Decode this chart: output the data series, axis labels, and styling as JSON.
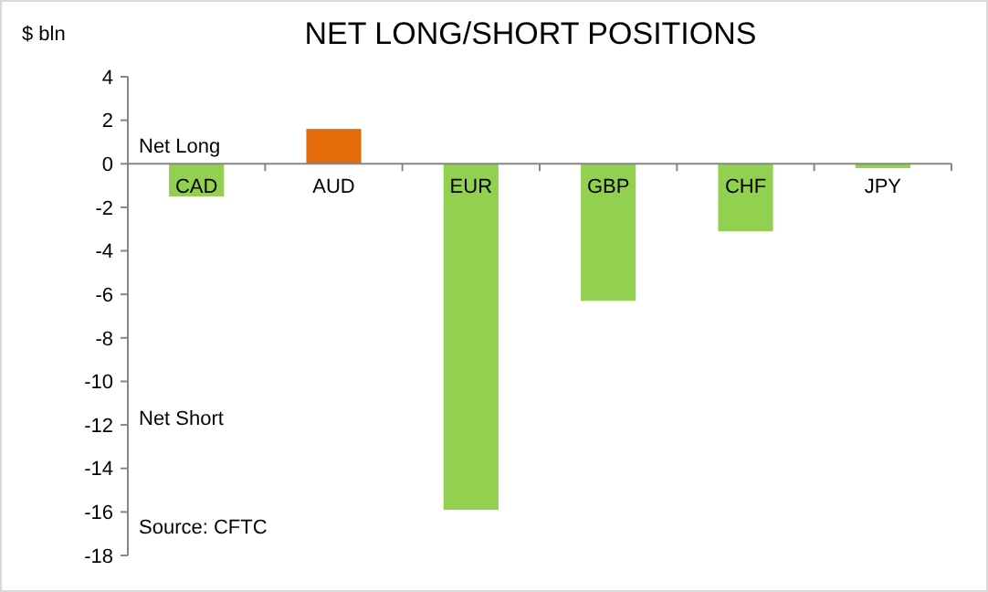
{
  "chart_data": {
    "type": "bar",
    "title": "NET LONG/SHORT POSITIONS",
    "ylabel": "$ bln",
    "categories": [
      "CAD",
      "AUD",
      "EUR",
      "GBP",
      "CHF",
      "JPY"
    ],
    "values": [
      -1.5,
      1.6,
      -15.9,
      -6.3,
      -3.1,
      -0.2
    ],
    "colors": [
      "#92d050",
      "#e46c0a",
      "#92d050",
      "#92d050",
      "#92d050",
      "#92d050"
    ],
    "ylim": [
      -18,
      4
    ],
    "yticks": [
      -18,
      -16,
      -14,
      -12,
      -10,
      -8,
      -6,
      -4,
      -2,
      0,
      2,
      4
    ],
    "grid": false,
    "annotations": [
      "Net Long",
      "Net Short",
      "Source: CFTC"
    ]
  }
}
